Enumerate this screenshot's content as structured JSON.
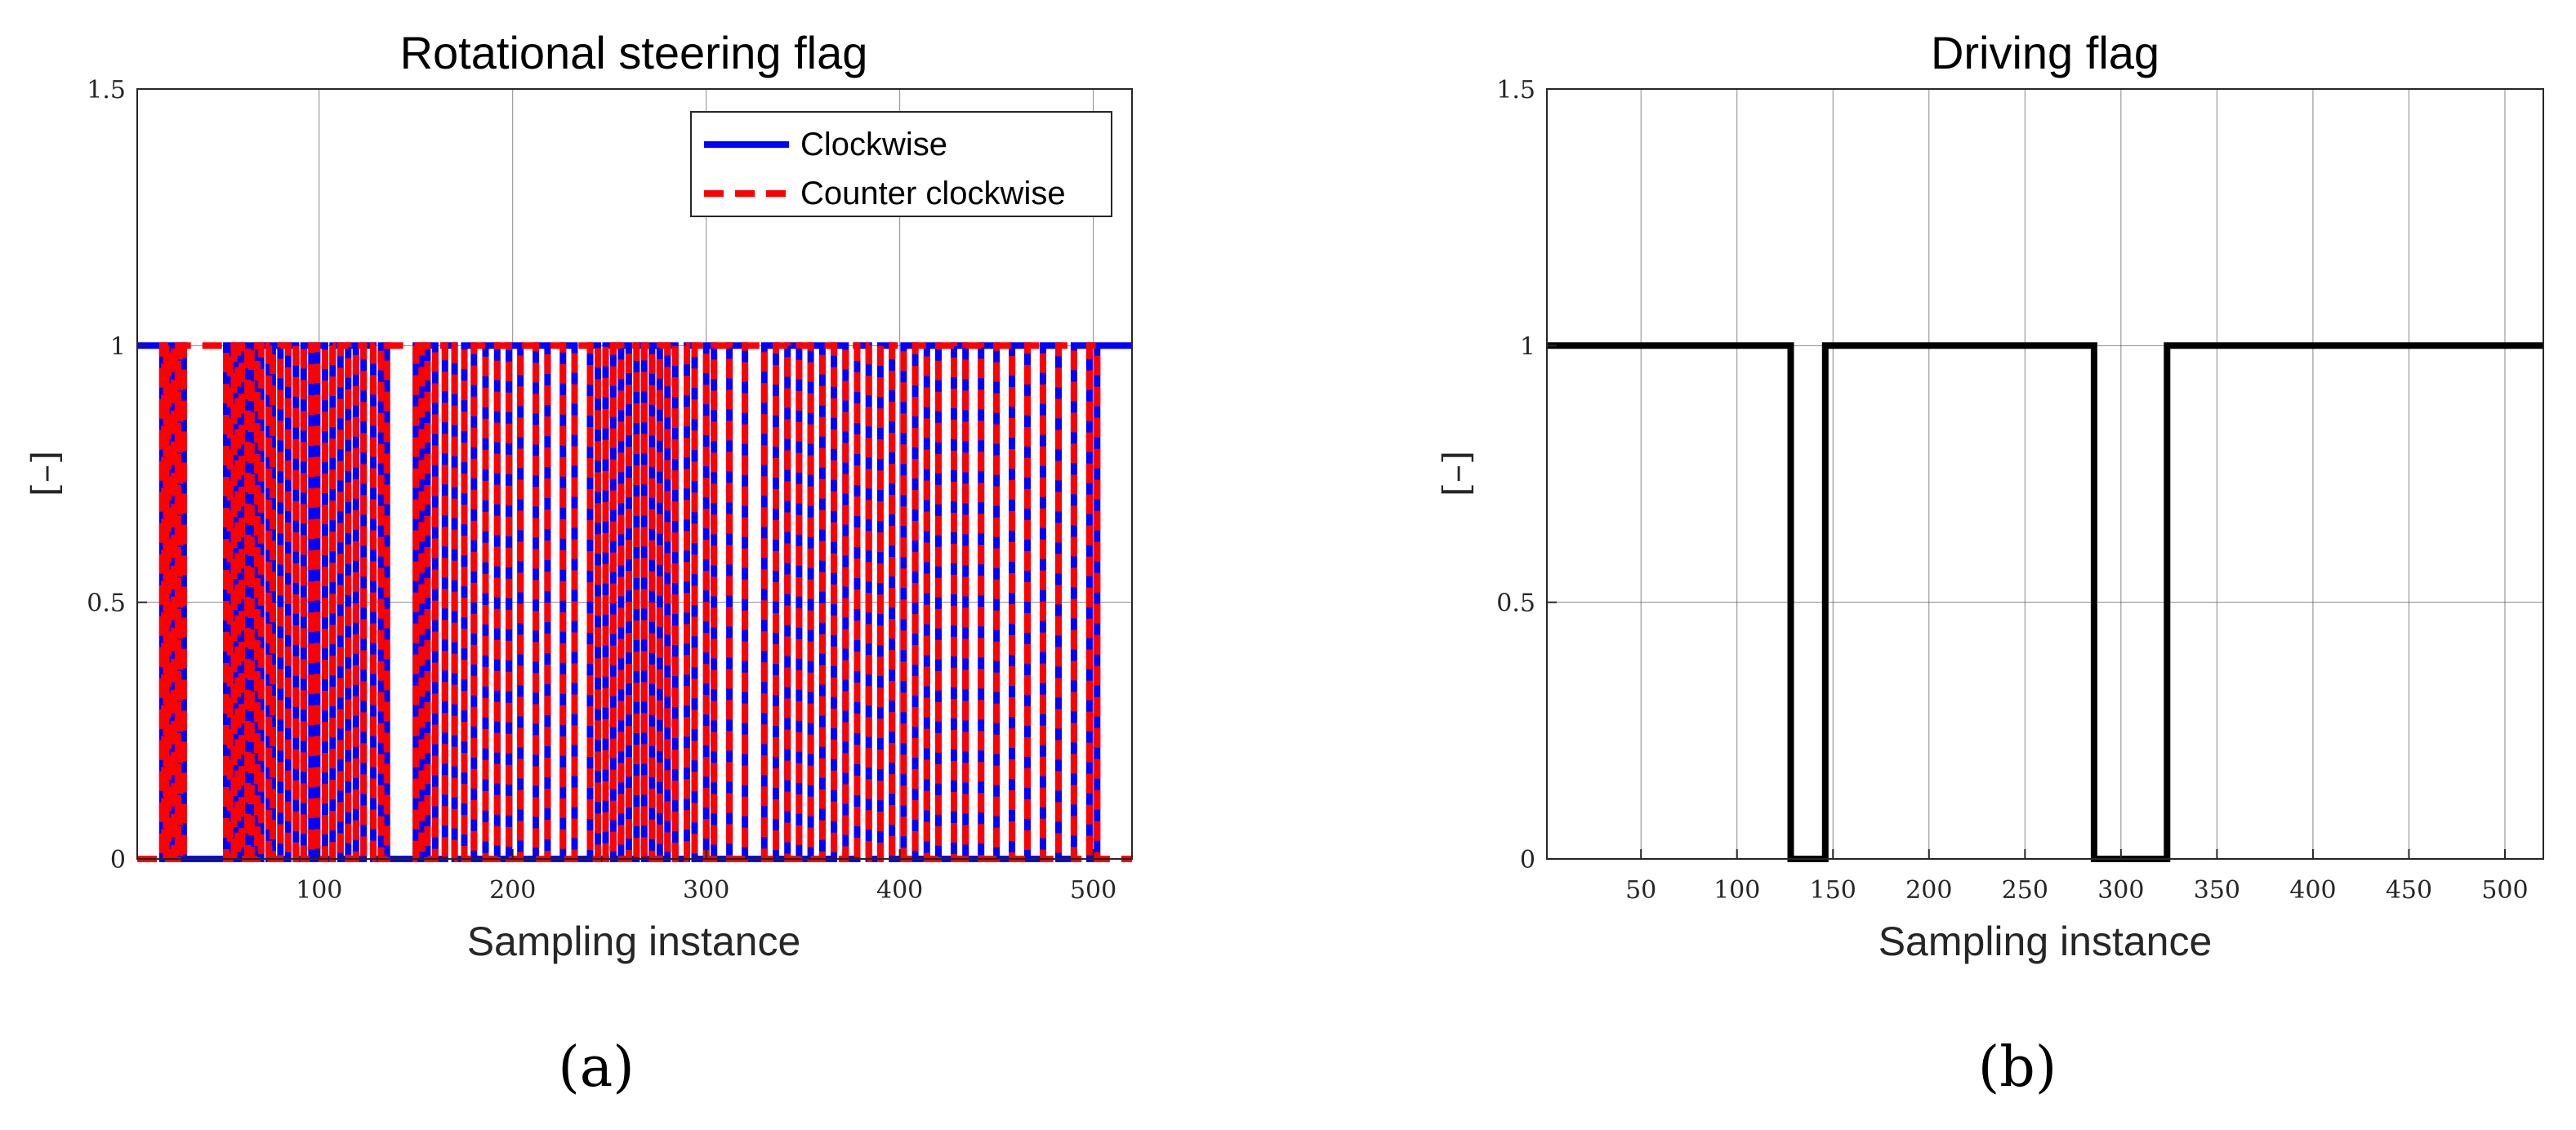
{
  "chart_data": [
    {
      "type": "line",
      "title": "Rotational steering flag",
      "xlabel": "Sampling instance",
      "ylabel": "[–]",
      "xlim": [
        6,
        520
      ],
      "ylim": [
        0,
        1.5
      ],
      "xticks": [
        100,
        200,
        300,
        400,
        500
      ],
      "yticks": [
        0,
        0.5,
        1,
        1.5
      ],
      "ytick_labels": [
        "0",
        "0.5",
        "1",
        "1.5"
      ],
      "grid": true,
      "legend": "top-right",
      "panel_label": "(a)",
      "series": [
        {
          "name": "Clockwise",
          "color": "#0000ff",
          "style": "solid",
          "segments": [
            [
              6,
              19,
              1
            ],
            [
              19,
              20,
              0
            ],
            [
              20,
              21,
              1
            ],
            [
              21,
              22,
              0
            ],
            [
              22,
              24,
              1
            ],
            [
              24,
              25,
              0
            ],
            [
              25,
              27,
              1
            ],
            [
              27,
              28,
              0
            ],
            [
              28,
              30,
              1
            ],
            [
              30,
              52,
              0
            ],
            [
              52,
              54,
              1
            ],
            [
              54,
              56,
              0
            ],
            [
              56,
              58,
              1
            ],
            [
              58,
              60,
              0
            ],
            [
              60,
              63,
              1
            ],
            [
              63,
              65,
              0
            ],
            [
              65,
              68,
              1
            ],
            [
              68,
              70,
              0
            ],
            [
              70,
              74,
              1
            ],
            [
              74,
              76,
              0
            ],
            [
              76,
              80,
              1
            ],
            [
              80,
              84,
              0
            ],
            [
              84,
              88,
              1
            ],
            [
              88,
              92,
              0
            ],
            [
              92,
              96,
              1
            ],
            [
              96,
              99,
              0
            ],
            [
              99,
              103,
              1
            ],
            [
              103,
              107,
              0
            ],
            [
              107,
              111,
              1
            ],
            [
              111,
              115,
              0
            ],
            [
              115,
              119,
              1
            ],
            [
              119,
              123,
              0
            ],
            [
              123,
              128,
              1
            ],
            [
              128,
              132,
              0
            ],
            [
              132,
              135,
              1
            ],
            [
              135,
              150,
              0
            ],
            [
              150,
              153,
              1
            ],
            [
              153,
              156,
              0
            ],
            [
              156,
              160,
              1
            ],
            [
              160,
              165,
              0
            ],
            [
              165,
              170,
              1
            ],
            [
              170,
              175,
              0
            ],
            [
              175,
              180,
              1
            ],
            [
              180,
              186,
              0
            ],
            [
              186,
              192,
              1
            ],
            [
              192,
              198,
              0
            ],
            [
              198,
              204,
              1
            ],
            [
              204,
              212,
              0
            ],
            [
              212,
              218,
              1
            ],
            [
              218,
              226,
              0
            ],
            [
              226,
              232,
              1
            ],
            [
              232,
              240,
              0
            ],
            [
              240,
              244,
              1
            ],
            [
              244,
              248,
              0
            ],
            [
              248,
              252,
              1
            ],
            [
              252,
              256,
              0
            ],
            [
              256,
              260,
              1
            ],
            [
              260,
              264,
              0
            ],
            [
              264,
              268,
              1
            ],
            [
              268,
              272,
              0
            ],
            [
              272,
              276,
              1
            ],
            [
              276,
              280,
              0
            ],
            [
              280,
              284,
              1
            ],
            [
              284,
              290,
              0
            ],
            [
              290,
              294,
              1
            ],
            [
              294,
              300,
              0
            ],
            [
              300,
              304,
              1
            ],
            [
              304,
              312,
              0
            ],
            [
              312,
              320,
              1
            ],
            [
              320,
              330,
              0
            ],
            [
              330,
              336,
              1
            ],
            [
              336,
              342,
              0
            ],
            [
              342,
              348,
              1
            ],
            [
              348,
              354,
              0
            ],
            [
              354,
              360,
              1
            ],
            [
              360,
              366,
              0
            ],
            [
              366,
              372,
              1
            ],
            [
              372,
              378,
              0
            ],
            [
              378,
              384,
              1
            ],
            [
              384,
              390,
              0
            ],
            [
              390,
              396,
              1
            ],
            [
              396,
              402,
              0
            ],
            [
              402,
              408,
              1
            ],
            [
              408,
              414,
              0
            ],
            [
              414,
              420,
              1
            ],
            [
              420,
              428,
              0
            ],
            [
              428,
              434,
              1
            ],
            [
              434,
              442,
              0
            ],
            [
              442,
              450,
              1
            ],
            [
              450,
              458,
              0
            ],
            [
              458,
              466,
              1
            ],
            [
              466,
              474,
              0
            ],
            [
              474,
              482,
              1
            ],
            [
              482,
              490,
              0
            ],
            [
              490,
              498,
              1
            ],
            [
              498,
              502,
              0
            ],
            [
              502,
              520,
              1
            ]
          ]
        },
        {
          "name": "Counter clockwise",
          "color": "#ff0000",
          "style": "dashed",
          "segments": [
            [
              6,
              19,
              0
            ],
            [
              19,
              20,
              1
            ],
            [
              20,
              21,
              0
            ],
            [
              21,
              22,
              1
            ],
            [
              22,
              24,
              0
            ],
            [
              24,
              25,
              1
            ],
            [
              25,
              27,
              0
            ],
            [
              27,
              28,
              1
            ],
            [
              28,
              30,
              0
            ],
            [
              30,
              52,
              1
            ],
            [
              52,
              54,
              0
            ],
            [
              54,
              56,
              1
            ],
            [
              56,
              58,
              0
            ],
            [
              58,
              60,
              1
            ],
            [
              60,
              63,
              0
            ],
            [
              63,
              65,
              1
            ],
            [
              65,
              68,
              0
            ],
            [
              68,
              70,
              1
            ],
            [
              70,
              74,
              0
            ],
            [
              74,
              76,
              1
            ],
            [
              76,
              80,
              0
            ],
            [
              80,
              84,
              1
            ],
            [
              84,
              88,
              0
            ],
            [
              88,
              92,
              1
            ],
            [
              92,
              96,
              0
            ],
            [
              96,
              99,
              1
            ],
            [
              99,
              103,
              0
            ],
            [
              103,
              107,
              1
            ],
            [
              107,
              111,
              0
            ],
            [
              111,
              115,
              1
            ],
            [
              115,
              119,
              0
            ],
            [
              119,
              123,
              1
            ],
            [
              123,
              128,
              0
            ],
            [
              128,
              132,
              1
            ],
            [
              132,
              135,
              0
            ],
            [
              135,
              150,
              1
            ],
            [
              150,
              153,
              0
            ],
            [
              153,
              156,
              1
            ],
            [
              156,
              160,
              0
            ],
            [
              160,
              165,
              1
            ],
            [
              165,
              170,
              0
            ],
            [
              170,
              175,
              1
            ],
            [
              175,
              180,
              0
            ],
            [
              180,
              186,
              1
            ],
            [
              186,
              192,
              0
            ],
            [
              192,
              198,
              1
            ],
            [
              198,
              204,
              0
            ],
            [
              204,
              212,
              1
            ],
            [
              212,
              218,
              0
            ],
            [
              218,
              226,
              1
            ],
            [
              226,
              232,
              0
            ],
            [
              232,
              240,
              1
            ],
            [
              240,
              244,
              0
            ],
            [
              244,
              248,
              1
            ],
            [
              248,
              252,
              0
            ],
            [
              252,
              256,
              1
            ],
            [
              256,
              260,
              0
            ],
            [
              260,
              264,
              1
            ],
            [
              264,
              268,
              0
            ],
            [
              268,
              272,
              1
            ],
            [
              272,
              276,
              0
            ],
            [
              276,
              280,
              1
            ],
            [
              280,
              284,
              0
            ],
            [
              284,
              290,
              1
            ],
            [
              290,
              294,
              0
            ],
            [
              294,
              300,
              1
            ],
            [
              300,
              304,
              0
            ],
            [
              304,
              312,
              1
            ],
            [
              312,
              320,
              0
            ],
            [
              320,
              330,
              1
            ],
            [
              330,
              336,
              0
            ],
            [
              336,
              342,
              1
            ],
            [
              342,
              348,
              0
            ],
            [
              348,
              354,
              1
            ],
            [
              354,
              360,
              0
            ],
            [
              360,
              366,
              1
            ],
            [
              366,
              372,
              0
            ],
            [
              372,
              378,
              1
            ],
            [
              378,
              384,
              0
            ],
            [
              384,
              390,
              1
            ],
            [
              390,
              396,
              0
            ],
            [
              396,
              402,
              1
            ],
            [
              402,
              408,
              0
            ],
            [
              408,
              414,
              1
            ],
            [
              414,
              420,
              0
            ],
            [
              420,
              428,
              1
            ],
            [
              428,
              434,
              0
            ],
            [
              434,
              442,
              1
            ],
            [
              442,
              450,
              0
            ],
            [
              450,
              458,
              1
            ],
            [
              458,
              466,
              0
            ],
            [
              466,
              474,
              1
            ],
            [
              474,
              482,
              0
            ],
            [
              482,
              490,
              1
            ],
            [
              490,
              498,
              0
            ],
            [
              498,
              502,
              1
            ],
            [
              502,
              520,
              0
            ]
          ]
        }
      ]
    },
    {
      "type": "line",
      "title": "Driving flag",
      "xlabel": "Sampling instance",
      "ylabel": "[–]",
      "xlim": [
        1,
        520
      ],
      "ylim": [
        0,
        1.5
      ],
      "xticks": [
        50,
        100,
        150,
        200,
        250,
        300,
        350,
        400,
        450,
        500
      ],
      "yticks": [
        0,
        0.5,
        1,
        1.5
      ],
      "ytick_labels": [
        "0",
        "0.5",
        "1",
        "1.5"
      ],
      "grid": true,
      "panel_label": "(b)",
      "series": [
        {
          "color": "#000000",
          "style": "solid",
          "segments": [
            [
              1,
              128,
              1
            ],
            [
              128,
              146,
              0
            ],
            [
              146,
              150,
              1
            ],
            [
              150,
              286,
              1
            ],
            [
              286,
              324,
              0
            ],
            [
              324,
              520,
              1
            ]
          ]
        }
      ]
    }
  ]
}
